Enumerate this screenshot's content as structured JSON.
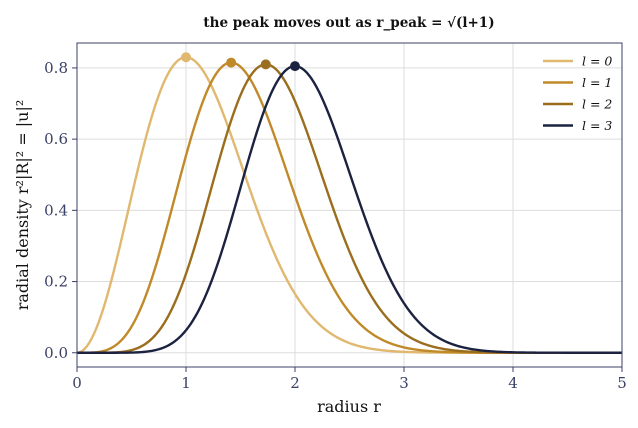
{
  "chart_data": {
    "type": "line",
    "title": "the peak moves out as r_peak = √(l+1)",
    "xlabel": "radius r",
    "ylabel": "radial density r²|R|² = |u|²",
    "xlim": [
      0,
      5
    ],
    "ylim": [
      -0.04,
      0.87
    ],
    "xticks": [
      0,
      1,
      2,
      3,
      4,
      5
    ],
    "yticks": [
      0.0,
      0.2,
      0.4,
      0.6,
      0.8
    ],
    "xtick_labels": [
      "0",
      "1",
      "2",
      "3",
      "4",
      "5"
    ],
    "ytick_labels": [
      "0.0",
      "0.2",
      "0.4",
      "0.6",
      "0.8"
    ],
    "grid": true,
    "legend_position": "top-right",
    "series": [
      {
        "name": "l = 0",
        "l": 0,
        "color": "#e0b870",
        "peak": {
          "x": 1.0,
          "y": 0.83
        }
      },
      {
        "name": "l = 1",
        "l": 1,
        "color": "#c08a2a",
        "peak": {
          "x": 1.414,
          "y": 0.815
        }
      },
      {
        "name": "l = 2",
        "l": 2,
        "color": "#9a6e1e",
        "peak": {
          "x": 1.732,
          "y": 0.81
        }
      },
      {
        "name": "l = 3",
        "l": 3,
        "color": "#1c2340",
        "peak": {
          "x": 2.0,
          "y": 0.805
        }
      }
    ],
    "sampled_points": [
      {
        "x": [
          0,
          0.5,
          1.0,
          1.5,
          2.0,
          2.5,
          3.0,
          3.5,
          4.0,
          5.0
        ],
        "y": [
          0,
          0.33,
          0.83,
          0.62,
          0.25,
          0.07,
          0.012,
          0.001,
          0,
          0
        ]
      },
      {
        "x": [
          0,
          0.5,
          1.0,
          1.414,
          2.0,
          2.5,
          3.0,
          3.5,
          4.0,
          5.0
        ],
        "y": [
          0,
          0.05,
          0.43,
          0.815,
          0.54,
          0.21,
          0.05,
          0.007,
          0.001,
          0
        ]
      },
      {
        "x": [
          0,
          0.5,
          1.0,
          1.732,
          2.0,
          2.5,
          3.0,
          3.5,
          4.0,
          5.0
        ],
        "y": [
          0,
          0.004,
          0.16,
          0.81,
          0.73,
          0.36,
          0.1,
          0.017,
          0.002,
          0
        ]
      },
      {
        "x": [
          0,
          0.5,
          1.0,
          1.5,
          2.0,
          2.5,
          3.0,
          3.5,
          4.0,
          5.0
        ],
        "y": [
          0,
          0,
          0.05,
          0.43,
          0.805,
          0.53,
          0.18,
          0.037,
          0.005,
          0
        ]
      }
    ]
  }
}
